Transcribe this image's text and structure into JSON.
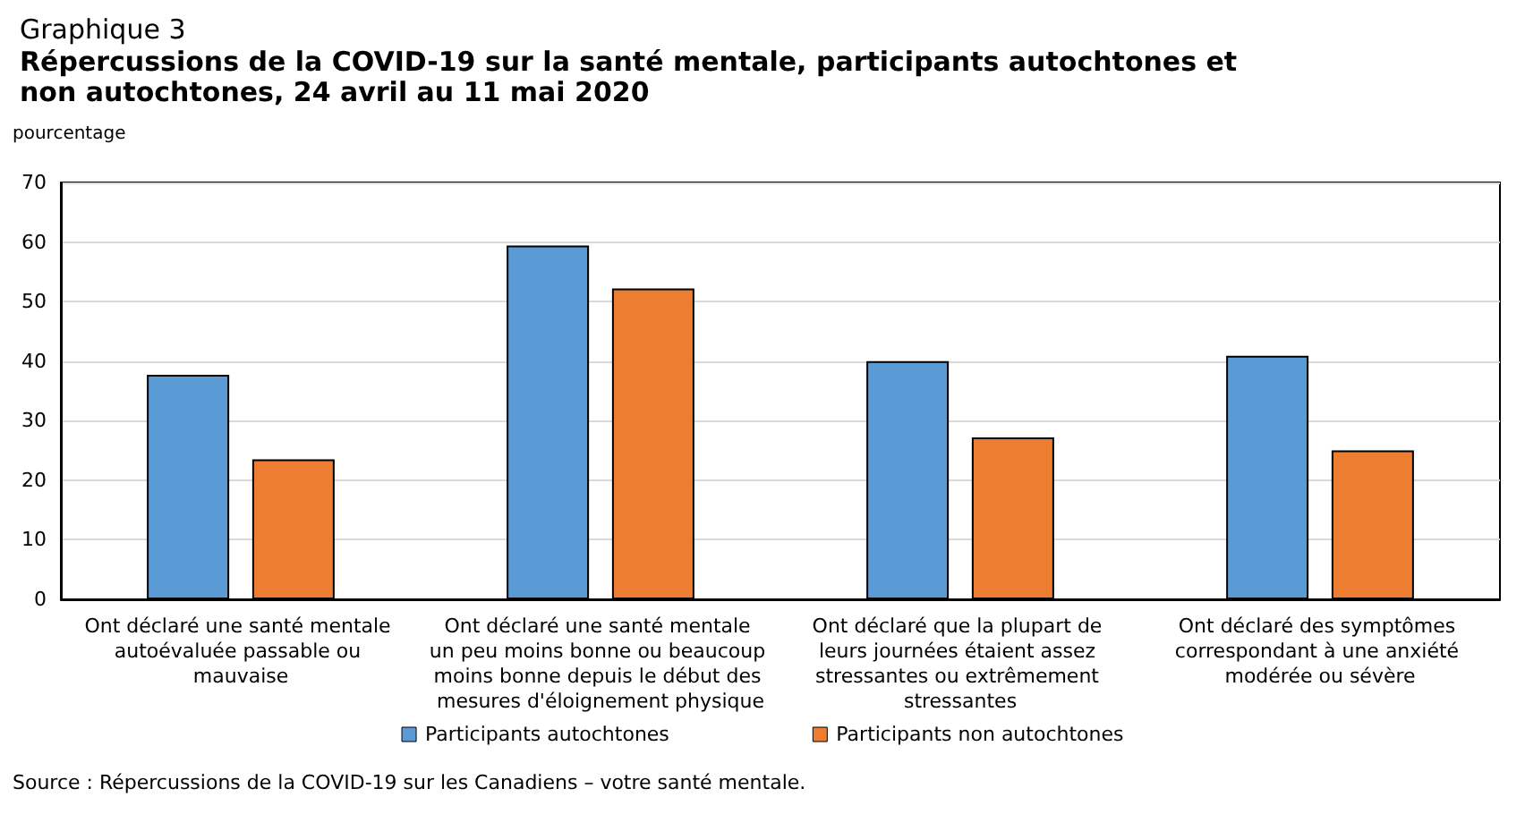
{
  "chart_data": {
    "type": "bar",
    "title": "Graphique 3",
    "subtitle": "Répercussions de la COVID-19 sur la santé mentale, participants autochtones et non autochtones, 24 avril au 11 mai 2020",
    "ylabel": "pourcentage",
    "categories": [
      "Ont déclaré une santé mentale autoévaluée passable ou mauvaise",
      "Ont déclaré une santé mentale un peu moins bonne ou beaucoup moins bonne depuis le début des mesures d'éloignement physique",
      "Ont déclaré que la plupart de leurs journées étaient assez stressantes ou extrêmement stressantes",
      "Ont déclaré des symptômes correspondant à une anxiété modérée ou sévère"
    ],
    "series": [
      {
        "name": "Participants autochtones",
        "color": "#5b9bd5",
        "values": [
          37.7,
          59.4,
          40.0,
          40.9
        ]
      },
      {
        "name": "Participants non autochtones",
        "color": "#ed7d31",
        "values": [
          23.5,
          52.2,
          27.2,
          25.0
        ]
      }
    ],
    "ylim": [
      0,
      70
    ],
    "yticks": [
      0,
      10,
      20,
      30,
      40,
      50,
      60,
      70
    ],
    "grid": "y",
    "legend": "bottom",
    "annotations": [
      "Source : Répercussions de la COVID-19 sur les Canadiens – votre santé mentale."
    ]
  }
}
